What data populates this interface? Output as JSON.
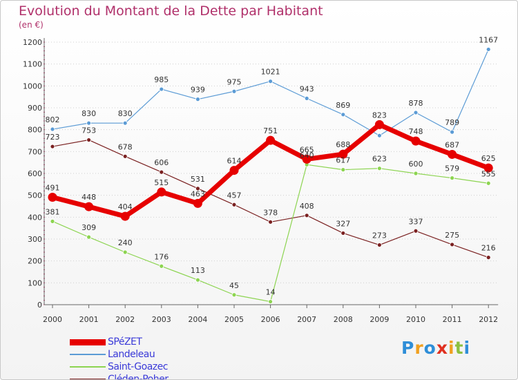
{
  "chart_data": {
    "type": "line",
    "title": "Evolution du Montant de la Dette par Habitant",
    "subtitle": "(en €)",
    "categories": [
      "2000",
      "2001",
      "2002",
      "2003",
      "2004",
      "2005",
      "2006",
      "2007",
      "2008",
      "2009",
      "2010",
      "2011",
      "2012"
    ],
    "y_ticks": [
      "0",
      "100",
      "200",
      "300",
      "400",
      "500",
      "600",
      "700",
      "800",
      "900",
      "1000",
      "1100",
      "1200"
    ],
    "ylim": [
      0,
      1200
    ],
    "grid": "horizontal dotted",
    "legend_position": "bottom-left",
    "series": [
      {
        "name": "SPéZET",
        "color": "#e60000",
        "values": [
          491,
          448,
          404,
          515,
          463,
          614,
          751,
          665,
          688,
          823,
          748,
          687,
          625
        ]
      },
      {
        "name": "Landeleau",
        "color": "#5b9bd5",
        "values": [
          802,
          830,
          830,
          985,
          939,
          975,
          1021,
          943,
          869,
          773,
          878,
          789,
          1167
        ]
      },
      {
        "name": "Saint-Goazec",
        "color": "#8cd450",
        "values": [
          381,
          309,
          240,
          176,
          113,
          45,
          14,
          640,
          617,
          623,
          600,
          579,
          555
        ]
      },
      {
        "name": "Cléden-Poher",
        "color": "#7a2020",
        "values": [
          723,
          753,
          678,
          606,
          531,
          457,
          378,
          408,
          327,
          273,
          337,
          275,
          216
        ]
      }
    ],
    "data_labels": [
      [
        "491",
        "448",
        "404",
        "515",
        "463",
        "614",
        "751",
        "665",
        "688",
        "823",
        "748",
        "687",
        "625"
      ],
      [
        "802",
        "830",
        "830",
        "985",
        "939",
        "975",
        "1021",
        "943",
        "869",
        "",
        "878",
        "789",
        "1167"
      ],
      [
        "381",
        "309",
        "240",
        "176",
        "113",
        "45",
        "14",
        "640",
        "617",
        "623",
        "600",
        "579",
        "555"
      ],
      [
        "723",
        "753",
        "678",
        "606",
        "531",
        "457",
        "378",
        "408",
        "327",
        "273",
        "337",
        "275",
        "216"
      ]
    ]
  },
  "logo": {
    "letters": [
      "P",
      "r",
      "o",
      "x",
      "i",
      "t",
      "i"
    ],
    "colors": [
      "#2e8ed8",
      "#f0a020",
      "#2e8ed8",
      "#e03020",
      "#f0a020",
      "#8cc040",
      "#2e8ed8"
    ]
  }
}
